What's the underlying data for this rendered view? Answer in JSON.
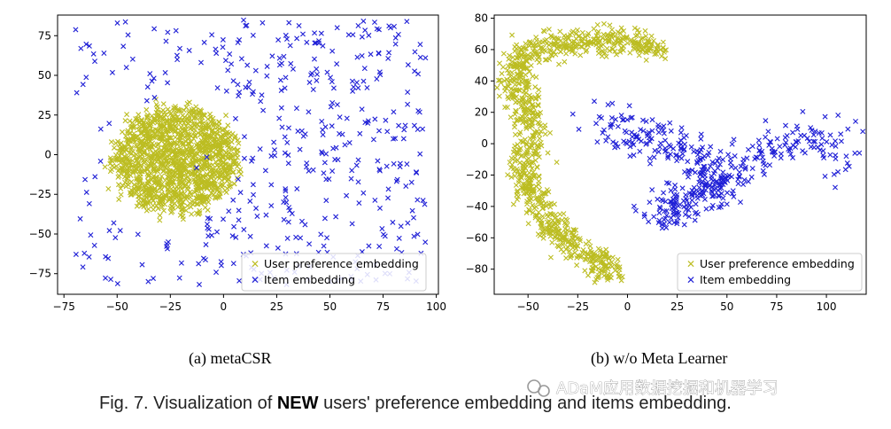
{
  "chart_data": [
    {
      "type": "scatter",
      "subcaption": "(a)  metaCSR",
      "xlim": [
        -78,
        101
      ],
      "ylim": [
        -88,
        88
      ],
      "xticks": [
        -75,
        -50,
        -25,
        0,
        25,
        50,
        75,
        100
      ],
      "yticks": [
        -75,
        -50,
        -25,
        0,
        25,
        50,
        75
      ],
      "legend_position": "lower-right",
      "series": [
        {
          "name": "User preference embedding",
          "color": "#bcbd22",
          "marker": "x",
          "distribution": "filled ellipse",
          "center": [
            -22,
            -3
          ],
          "spread": [
            28,
            33
          ],
          "count": 1400
        },
        {
          "name": "Item embedding",
          "color": "#1f1fd6",
          "marker": "x",
          "distribution": "scattered",
          "x_range": [
            -70,
            95
          ],
          "y_range": [
            -82,
            85
          ],
          "count": 420
        }
      ]
    },
    {
      "type": "scatter",
      "subcaption": "(b)  w/o Meta Learner",
      "xlim": [
        -67,
        120
      ],
      "ylim": [
        -96,
        82
      ],
      "xticks": [
        -50,
        -25,
        0,
        25,
        50,
        75,
        100
      ],
      "yticks": [
        -80,
        -60,
        -40,
        -20,
        0,
        20,
        40,
        60,
        80
      ],
      "legend_position": "lower-right",
      "series": [
        {
          "name": "User preference embedding",
          "color": "#bcbd22",
          "marker": "x",
          "distribution": "C-shaped band",
          "path": [
            [
              17,
              58
            ],
            [
              5,
              65
            ],
            [
              -15,
              66
            ],
            [
              -38,
              63
            ],
            [
              -55,
              55
            ],
            [
              -57,
              35
            ],
            [
              -50,
              20
            ],
            [
              -48,
              5
            ],
            [
              -52,
              -15
            ],
            [
              -47,
              -35
            ],
            [
              -38,
              -55
            ],
            [
              -28,
              -65
            ],
            [
              -18,
              -72
            ],
            [
              -10,
              -80
            ],
            [
              -5,
              -84
            ]
          ],
          "count": 950
        },
        {
          "name": "Item embedding",
          "color": "#1f1fd6",
          "marker": "x",
          "distribution": "band",
          "path": [
            [
              -15,
              15
            ],
            [
              0,
              5
            ],
            [
              20,
              0
            ],
            [
              40,
              -10
            ],
            [
              45,
              -25
            ],
            [
              30,
              -38
            ],
            [
              15,
              -45
            ],
            [
              40,
              -30
            ],
            [
              60,
              -15
            ],
            [
              75,
              0
            ],
            [
              90,
              8
            ],
            [
              100,
              0
            ],
            [
              110,
              -12
            ]
          ],
          "count": 450
        }
      ]
    }
  ],
  "caption": {
    "prefix": "Fig. 7.  Visualization of ",
    "bold": "NEW",
    "suffix": " users' preference embedding and items embedding."
  },
  "watermark": "ADaM应用数据挖掘和机器学习"
}
